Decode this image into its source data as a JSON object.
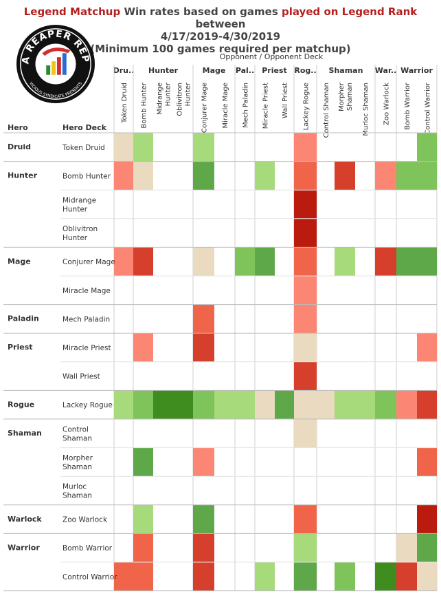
{
  "title": {
    "part1": "Legend Matchup",
    "part2": " Win rates based on games ",
    "part3": "played on Legend Rank",
    "part4": "  between",
    "line2": "4/17/2019-4/30/2019",
    "line3": "(Minimum 100 games required per matchup)"
  },
  "logo": {
    "main_text": "DATA REAPER REPORT",
    "sub_text": "VICIOUS SYNDICATE PRESENTS"
  },
  "colors": {
    "-3": "#bb1a0f",
    "-2": "#d63f2b",
    "-1.5": "#f0644a",
    "-1": "#fb8673",
    "0": "#eadbc0",
    "1": "#a6da7b",
    "1.5": "#7fc45a",
    "2": "#5fa84a",
    "3": "#3f8d1f"
  },
  "chart_data": {
    "type": "heatmap",
    "axis_title": "Opponent  /  Opponent Deck",
    "row_header_hero": "Hero",
    "row_header_deck": "Hero Deck",
    "col_groups": [
      {
        "name": "Dru..",
        "span": 1
      },
      {
        "name": "Hunter",
        "span": 3
      },
      {
        "name": "Mage",
        "span": 2
      },
      {
        "name": "Pal..",
        "span": 1
      },
      {
        "name": "Priest",
        "span": 2
      },
      {
        "name": "Rog..",
        "span": 1
      },
      {
        "name": "Shaman",
        "span": 3
      },
      {
        "name": "War..",
        "span": 1
      },
      {
        "name": "Warrior",
        "span": 2
      }
    ],
    "columns": [
      [
        "Token Druid"
      ],
      [
        "Bomb Hunter"
      ],
      [
        "Midrange",
        "Hunter"
      ],
      [
        "Oblivitron",
        "Hunter"
      ],
      [
        "Conjurer Mage"
      ],
      [
        "Miracle Mage"
      ],
      [
        "Mech Paladin"
      ],
      [
        "Miracle Priest"
      ],
      [
        "Wall Priest"
      ],
      [
        "Lackey Rogue"
      ],
      [
        "Control Shaman"
      ],
      [
        "Morpher",
        "Shaman"
      ],
      [
        "Murloc Shaman"
      ],
      [
        "Zoo Warlock"
      ],
      [
        "Bomb Warrior"
      ],
      [
        "Control Warrior"
      ]
    ],
    "hero_groups": [
      {
        "hero": "Druid",
        "rows": [
          {
            "deck": [
              "Token Druid"
            ],
            "cells": [
              0,
              1,
              null,
              null,
              1,
              null,
              null,
              null,
              null,
              -1,
              null,
              null,
              null,
              null,
              null,
              1.5
            ]
          }
        ]
      },
      {
        "hero": "Hunter",
        "rows": [
          {
            "deck": [
              "Bomb Hunter"
            ],
            "cells": [
              -1,
              0,
              null,
              null,
              2,
              null,
              null,
              1,
              null,
              -1.5,
              null,
              -2,
              null,
              -1,
              1.5,
              1.5
            ]
          },
          {
            "deck": [
              "Midrange",
              "Hunter"
            ],
            "cells": [
              null,
              null,
              null,
              null,
              null,
              null,
              null,
              null,
              null,
              -3,
              null,
              null,
              null,
              null,
              null,
              null
            ]
          },
          {
            "deck": [
              "Oblivitron",
              "Hunter"
            ],
            "cells": [
              null,
              null,
              null,
              null,
              null,
              null,
              null,
              null,
              null,
              -3,
              null,
              null,
              null,
              null,
              null,
              null
            ]
          }
        ]
      },
      {
        "hero": "Mage",
        "rows": [
          {
            "deck": [
              "Conjurer Mage"
            ],
            "cells": [
              -1,
              -2,
              null,
              null,
              0,
              null,
              1.5,
              2,
              null,
              -1.5,
              null,
              1,
              null,
              -2,
              2,
              2
            ]
          },
          {
            "deck": [
              "Miracle Mage"
            ],
            "cells": [
              null,
              null,
              null,
              null,
              null,
              null,
              null,
              null,
              null,
              -1,
              null,
              null,
              null,
              null,
              null,
              null
            ]
          }
        ]
      },
      {
        "hero": "Paladin",
        "rows": [
          {
            "deck": [
              "Mech Paladin"
            ],
            "cells": [
              null,
              null,
              null,
              null,
              -1.5,
              null,
              null,
              null,
              null,
              -1,
              null,
              null,
              null,
              null,
              null,
              null
            ]
          }
        ]
      },
      {
        "hero": "Priest",
        "rows": [
          {
            "deck": [
              "Miracle Priest"
            ],
            "cells": [
              null,
              -1,
              null,
              null,
              -2,
              null,
              null,
              null,
              null,
              0,
              null,
              null,
              null,
              null,
              null,
              -1
            ]
          },
          {
            "deck": [
              "Wall Priest"
            ],
            "cells": [
              null,
              null,
              null,
              null,
              null,
              null,
              null,
              null,
              null,
              -2,
              null,
              null,
              null,
              null,
              null,
              null
            ]
          }
        ]
      },
      {
        "hero": "Rogue",
        "rows": [
          {
            "deck": [
              "Lackey Rogue"
            ],
            "cells": [
              1,
              1.5,
              3,
              3,
              1.5,
              1,
              1,
              0,
              2,
              0,
              0,
              1,
              1,
              1.5,
              -1,
              -2
            ]
          }
        ]
      },
      {
        "hero": "Shaman",
        "rows": [
          {
            "deck": [
              "Control",
              "Shaman"
            ],
            "cells": [
              null,
              null,
              null,
              null,
              null,
              null,
              null,
              null,
              null,
              0,
              null,
              null,
              null,
              null,
              null,
              null
            ]
          },
          {
            "deck": [
              "Morpher",
              "Shaman"
            ],
            "cells": [
              null,
              2,
              null,
              null,
              -1,
              null,
              null,
              null,
              null,
              null,
              null,
              null,
              null,
              null,
              null,
              -1.5
            ]
          },
          {
            "deck": [
              "Murloc",
              "Shaman"
            ],
            "cells": [
              null,
              null,
              null,
              null,
              null,
              null,
              null,
              null,
              null,
              null,
              null,
              null,
              null,
              null,
              null,
              null
            ]
          }
        ]
      },
      {
        "hero": "Warlock",
        "rows": [
          {
            "deck": [
              "Zoo Warlock"
            ],
            "cells": [
              null,
              1,
              null,
              null,
              2,
              null,
              null,
              null,
              null,
              -1.5,
              null,
              null,
              null,
              null,
              null,
              -3
            ]
          }
        ]
      },
      {
        "hero": "Warrior",
        "rows": [
          {
            "deck": [
              "Bomb Warrior"
            ],
            "cells": [
              null,
              -1.5,
              null,
              null,
              -2,
              null,
              null,
              null,
              null,
              1,
              null,
              null,
              null,
              null,
              0,
              2
            ]
          },
          {
            "deck": [
              "Control Warrior"
            ],
            "cells": [
              -1.5,
              -1.5,
              null,
              null,
              -2,
              null,
              null,
              1,
              null,
              2,
              null,
              1.5,
              null,
              3,
              -2,
              0
            ]
          }
        ]
      }
    ]
  }
}
